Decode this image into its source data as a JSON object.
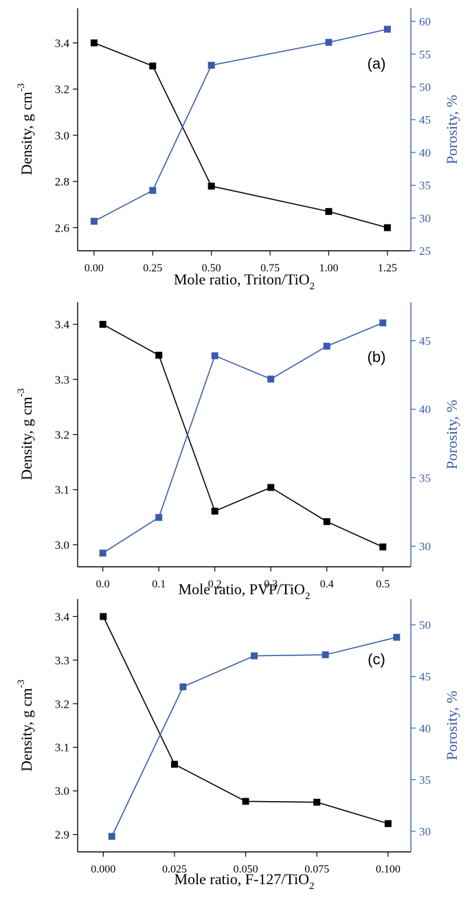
{
  "chart_data": [
    {
      "type": "line",
      "panel_label": "(a)",
      "xlabel": "Mole  ratio, Triton/TiO",
      "xlabel_sub": "2",
      "ylabel": "Density, g cm",
      "ylabel_sup": "-3",
      "y2label": "Porosity, %",
      "x": [
        0.0,
        0.25,
        0.5,
        1.0,
        1.25
      ],
      "xlim": [
        -0.07,
        1.35
      ],
      "xticks": [
        0.0,
        0.25,
        0.5,
        0.75,
        1.0,
        1.25
      ],
      "xtick_labels": [
        "0.00",
        "0.25",
        "0.50",
        "0.75",
        "1.00",
        "1.25"
      ],
      "ylim": [
        2.5,
        3.55
      ],
      "yticks": [
        2.6,
        2.8,
        3.0,
        3.2,
        3.4
      ],
      "ytick_labels": [
        "2.6",
        "2.8",
        "3.0",
        "3.2",
        "3.4"
      ],
      "y2lim": [
        25,
        62
      ],
      "y2ticks": [
        25,
        30,
        35,
        40,
        45,
        50,
        55,
        60
      ],
      "y2tick_labels": [
        "25",
        "30",
        "35",
        "40",
        "45",
        "50",
        "55",
        "60"
      ],
      "series": [
        {
          "axis": "left",
          "color": "#000000",
          "values": [
            3.4,
            3.3,
            2.78,
            2.67,
            2.6
          ]
        },
        {
          "axis": "right",
          "color": "#3a5cab",
          "values": [
            29.5,
            34.2,
            53.3,
            56.8,
            58.8
          ]
        }
      ],
      "grid": false
    },
    {
      "type": "line",
      "panel_label": "(b)",
      "xlabel": "Mole  ratio, PVP/TiO",
      "xlabel_sub": "2",
      "ylabel": "Density, g cm",
      "ylabel_sup": "-3",
      "y2label": "Porosity, %",
      "x": [
        0.0,
        0.1,
        0.2,
        0.3,
        0.4,
        0.5
      ],
      "xlim": [
        -0.045,
        0.55
      ],
      "xticks": [
        0.0,
        0.1,
        0.2,
        0.3,
        0.4,
        0.5
      ],
      "xtick_labels": [
        "0.0",
        "0.1",
        "0.2",
        "0.3",
        "0.4",
        "0.5"
      ],
      "ylim": [
        2.96,
        3.44
      ],
      "yticks": [
        3.0,
        3.1,
        3.2,
        3.3,
        3.4
      ],
      "ytick_labels": [
        "3.0",
        "3.1",
        "3.2",
        "3.3",
        "3.4"
      ],
      "y2lim": [
        28.5,
        47.8
      ],
      "y2ticks": [
        30,
        35,
        40,
        45
      ],
      "y2tick_labels": [
        "30",
        "35",
        "40",
        "45"
      ],
      "series": [
        {
          "axis": "left",
          "color": "#000000",
          "values": [
            3.4,
            3.344,
            3.061,
            3.104,
            3.042,
            2.996
          ]
        },
        {
          "axis": "right",
          "color": "#3a5cab",
          "values": [
            29.5,
            32.1,
            43.9,
            42.2,
            44.6,
            46.3
          ]
        }
      ],
      "grid": false
    },
    {
      "type": "line",
      "panel_label": "(c)",
      "xlabel": "Mole  ratio, F-127/TiO",
      "xlabel_sub": "2",
      "ylabel": "Density, g cm",
      "ylabel_sup": "-3",
      "y2label": "Porosity, %",
      "x": [
        0.0,
        0.025,
        0.05,
        0.075,
        0.1
      ],
      "x2": [
        0.003,
        0.028,
        0.053,
        0.078,
        0.103
      ],
      "xlim": [
        -0.009,
        0.108
      ],
      "xticks": [
        0.0,
        0.025,
        0.05,
        0.075,
        0.1
      ],
      "xtick_labels": [
        "0.000",
        "0.025",
        "0.050",
        "0.075",
        "0.100"
      ],
      "ylim": [
        2.86,
        3.44
      ],
      "yticks": [
        2.9,
        3.0,
        3.1,
        3.2,
        3.3,
        3.4
      ],
      "ytick_labels": [
        "2.9",
        "3.0",
        "3.1",
        "3.2",
        "3.3",
        "3.4"
      ],
      "y2lim": [
        28,
        52.5
      ],
      "y2ticks": [
        30,
        35,
        40,
        45,
        50
      ],
      "y2tick_labels": [
        "30",
        "35",
        "40",
        "45",
        "50"
      ],
      "series": [
        {
          "axis": "left",
          "color": "#000000",
          "values": [
            3.4,
            3.061,
            2.976,
            2.974,
            2.925
          ]
        },
        {
          "axis": "right",
          "color": "#3a5cab",
          "values": [
            29.5,
            44.0,
            47.0,
            47.1,
            48.8
          ]
        }
      ],
      "grid": false
    }
  ]
}
